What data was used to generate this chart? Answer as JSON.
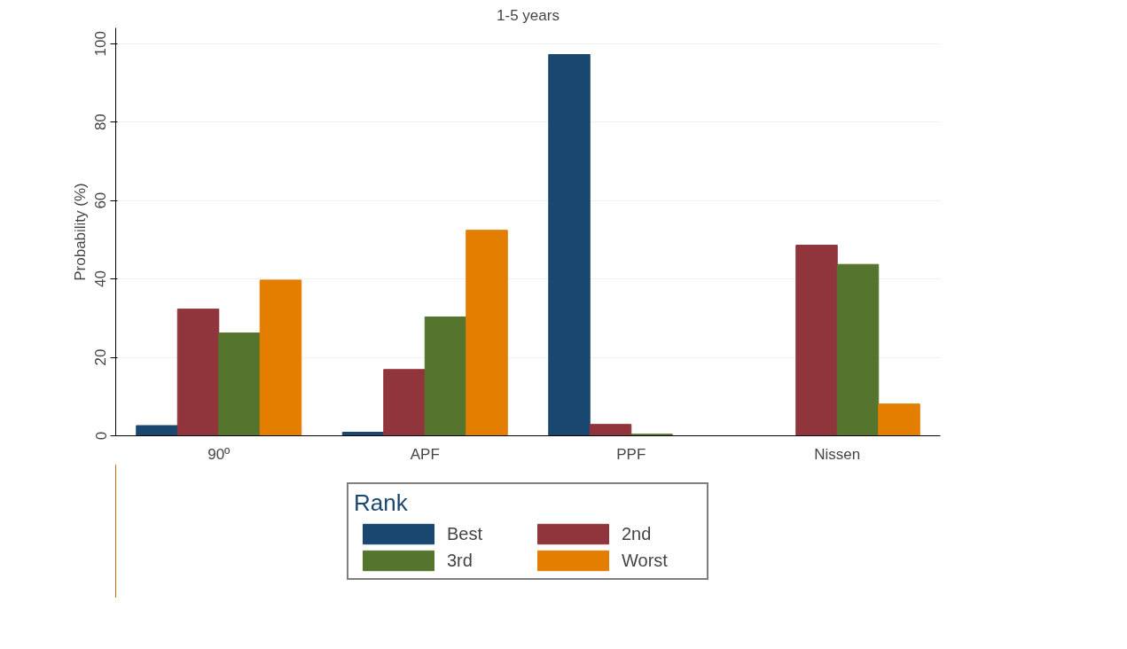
{
  "chart_data": {
    "type": "bar",
    "title": "1-5 years",
    "ylabel": "Probability (%)",
    "legend_title": "Rank",
    "categories": [
      "90º",
      "APF",
      "PPF",
      "Nissen"
    ],
    "series": [
      {
        "name": "Best",
        "color": "#1a476f",
        "values": [
          2.6,
          0.9,
          97.2,
          0
        ]
      },
      {
        "name": "2nd",
        "color": "#90353b",
        "values": [
          32.3,
          16.9,
          2.9,
          48.6
        ]
      },
      {
        "name": "3rd",
        "color": "#55752f",
        "values": [
          26.2,
          30.3,
          0.4,
          43.7
        ]
      },
      {
        "name": "Worst",
        "color": "#e37e00",
        "values": [
          39.7,
          52.4,
          0,
          8.1
        ]
      }
    ],
    "ylim": [
      0,
      104
    ],
    "yticks": [
      0,
      20,
      40,
      60,
      80,
      100
    ],
    "grid": "y",
    "legend": "bottom"
  }
}
